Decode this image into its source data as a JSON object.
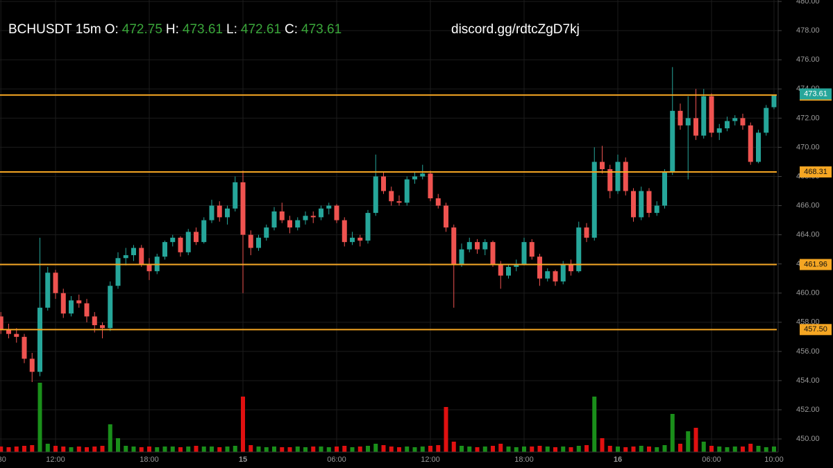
{
  "chart_data": {
    "type": "candlestick",
    "symbol": "BCHUSDT 15m",
    "readout_labels": [
      "O:",
      "H:",
      "L:",
      "C:"
    ],
    "annotation": "discord.gg/rdtcZgD7kj",
    "up_color": "#26a69a",
    "down_color": "#ef5350",
    "volume_up_color": "#1a8f1a",
    "volume_down_color": "#e01010",
    "level_color": "#f5a623",
    "grid": true,
    "ylim": [
      449.1,
      480.1
    ],
    "yticks": [
      {
        "value": 450,
        "label": "450.00"
      },
      {
        "value": 452,
        "label": "452.00"
      },
      {
        "value": 454,
        "label": "454.00"
      },
      {
        "value": 456,
        "label": "456.00"
      },
      {
        "value": 458,
        "label": "458.00"
      },
      {
        "value": 460,
        "label": "460.00"
      },
      {
        "value": 462,
        "label": "462.00"
      },
      {
        "value": 464,
        "label": "464.00"
      },
      {
        "value": 466,
        "label": "466.00"
      },
      {
        "value": 468,
        "label": "468.00"
      },
      {
        "value": 470,
        "label": "470.00"
      },
      {
        "value": 472,
        "label": "472.00"
      },
      {
        "value": 474,
        "label": "474.00"
      },
      {
        "value": 476,
        "label": "476.00"
      },
      {
        "value": 478,
        "label": "478.00"
      },
      {
        "value": 480,
        "label": "480.00"
      }
    ],
    "levels": [
      473.58,
      468.31,
      461.96,
      {
        "value": 457.5,
        "label": "457.50"
      }
    ],
    "categories": [
      ":30",
      null,
      null,
      null,
      null,
      null,
      null,
      "12:00",
      null,
      null,
      null,
      null,
      null,
      null,
      null,
      null,
      null,
      null,
      null,
      "18:00",
      null,
      null,
      null,
      null,
      null,
      null,
      null,
      null,
      null,
      null,
      null,
      "15",
      null,
      null,
      null,
      null,
      null,
      null,
      null,
      null,
      null,
      null,
      null,
      "06:00",
      null,
      null,
      null,
      null,
      null,
      null,
      null,
      null,
      null,
      null,
      null,
      "12:00",
      null,
      null,
      null,
      null,
      null,
      null,
      null,
      null,
      null,
      null,
      null,
      "18:00",
      null,
      null,
      null,
      null,
      null,
      null,
      null,
      null,
      null,
      null,
      null,
      "16",
      null,
      null,
      null,
      null,
      null,
      null,
      null,
      null,
      null,
      null,
      null,
      "06:00",
      null,
      null,
      null,
      null,
      null,
      null,
      null,
      "10:00"
    ],
    "candles": [
      [
        458.4,
        458.7,
        457.2,
        457.5
      ],
      [
        457.5,
        457.9,
        456.9,
        457.2
      ],
      [
        457.2,
        457.6,
        456.6,
        457.0
      ],
      [
        457.0,
        457.2,
        455.2,
        455.5
      ],
      [
        455.5,
        455.9,
        453.9,
        454.6
      ],
      [
        454.6,
        463.8,
        454.3,
        459.0
      ],
      [
        459.0,
        461.8,
        458.8,
        461.4
      ],
      [
        461.4,
        461.6,
        459.6,
        460.0
      ],
      [
        460.0,
        460.3,
        458.3,
        458.6
      ],
      [
        458.6,
        459.8,
        458.4,
        459.5
      ],
      [
        459.5,
        459.9,
        459.0,
        459.3
      ],
      [
        459.3,
        459.6,
        458.0,
        458.4
      ],
      [
        458.4,
        458.7,
        457.3,
        457.8
      ],
      [
        457.8,
        458.0,
        456.9,
        457.6
      ],
      [
        457.6,
        460.8,
        457.4,
        460.5
      ],
      [
        460.5,
        462.8,
        460.3,
        462.4
      ],
      [
        462.4,
        463.1,
        461.9,
        462.6
      ],
      [
        462.6,
        463.3,
        462.2,
        463.1
      ],
      [
        463.1,
        463.3,
        461.8,
        462.0
      ],
      [
        462.0,
        462.4,
        460.9,
        461.5
      ],
      [
        461.5,
        462.7,
        461.3,
        462.5
      ],
      [
        462.5,
        463.6,
        462.3,
        463.5
      ],
      [
        463.5,
        464.0,
        463.2,
        463.8
      ],
      [
        463.8,
        463.9,
        462.5,
        462.8
      ],
      [
        462.8,
        464.4,
        462.6,
        464.2
      ],
      [
        464.2,
        464.5,
        463.3,
        463.5
      ],
      [
        463.5,
        465.2,
        463.4,
        465.0
      ],
      [
        465.0,
        466.4,
        464.8,
        466.0
      ],
      [
        466.0,
        466.3,
        464.9,
        465.2
      ],
      [
        465.2,
        466.0,
        464.7,
        465.8
      ],
      [
        465.8,
        468.0,
        465.6,
        467.6
      ],
      [
        467.6,
        468.4,
        460.0,
        464.0
      ],
      [
        464.0,
        464.3,
        462.6,
        463.1
      ],
      [
        463.1,
        464.0,
        462.9,
        463.8
      ],
      [
        463.8,
        464.7,
        463.6,
        464.5
      ],
      [
        464.5,
        465.9,
        464.3,
        465.6
      ],
      [
        465.6,
        466.2,
        464.8,
        465.0
      ],
      [
        465.0,
        465.3,
        464.1,
        464.5
      ],
      [
        464.5,
        465.2,
        464.3,
        465.0
      ],
      [
        465.0,
        465.6,
        464.7,
        465.3
      ],
      [
        465.3,
        465.6,
        464.8,
        465.2
      ],
      [
        465.2,
        466.0,
        465.0,
        465.8
      ],
      [
        465.8,
        466.2,
        465.4,
        466.0
      ],
      [
        466.0,
        466.1,
        464.8,
        465.0
      ],
      [
        465.0,
        465.2,
        463.2,
        463.5
      ],
      [
        463.5,
        464.2,
        463.3,
        463.8
      ],
      [
        463.8,
        464.0,
        463.2,
        463.6
      ],
      [
        463.6,
        465.7,
        463.4,
        465.5
      ],
      [
        465.5,
        469.5,
        465.3,
        468.0
      ],
      [
        468.0,
        468.3,
        466.8,
        467.0
      ],
      [
        467.0,
        467.3,
        466.0,
        466.3
      ],
      [
        466.3,
        466.7,
        466.0,
        466.2
      ],
      [
        466.2,
        468.0,
        466.0,
        467.8
      ],
      [
        467.8,
        468.3,
        467.5,
        468.0
      ],
      [
        468.0,
        468.8,
        467.8,
        468.2
      ],
      [
        468.2,
        468.4,
        466.3,
        466.5
      ],
      [
        466.5,
        466.8,
        465.8,
        466.0
      ],
      [
        466.0,
        466.2,
        464.2,
        464.5
      ],
      [
        464.5,
        464.7,
        459.0,
        462.0
      ],
      [
        462.0,
        463.4,
        461.8,
        463.0
      ],
      [
        463.0,
        463.8,
        462.8,
        463.5
      ],
      [
        463.5,
        463.7,
        462.7,
        463.0
      ],
      [
        463.0,
        463.7,
        462.6,
        463.5
      ],
      [
        463.5,
        463.6,
        461.8,
        462.0
      ],
      [
        462.0,
        462.2,
        460.3,
        461.2
      ],
      [
        461.2,
        462.0,
        461.0,
        461.8
      ],
      [
        461.8,
        462.3,
        461.5,
        462.0
      ],
      [
        462.0,
        463.8,
        461.9,
        463.5
      ],
      [
        463.5,
        463.7,
        462.3,
        462.5
      ],
      [
        462.5,
        462.7,
        460.5,
        461.0
      ],
      [
        461.0,
        461.7,
        460.8,
        461.5
      ],
      [
        461.5,
        461.6,
        460.5,
        460.8
      ],
      [
        460.8,
        462.2,
        460.6,
        462.0
      ],
      [
        462.0,
        462.3,
        461.2,
        461.5
      ],
      [
        461.5,
        464.9,
        461.4,
        464.5
      ],
      [
        464.5,
        464.8,
        463.5,
        463.8
      ],
      [
        463.8,
        470.0,
        463.6,
        469.0
      ],
      [
        469.0,
        470.1,
        468.2,
        468.5
      ],
      [
        468.5,
        468.8,
        466.5,
        467.0
      ],
      [
        467.0,
        469.5,
        466.8,
        469.0
      ],
      [
        469.0,
        469.3,
        466.7,
        467.0
      ],
      [
        467.0,
        467.2,
        464.9,
        465.2
      ],
      [
        465.2,
        467.3,
        465.0,
        467.0
      ],
      [
        467.0,
        467.2,
        465.2,
        465.5
      ],
      [
        465.5,
        466.3,
        465.3,
        466.0
      ],
      [
        466.0,
        468.5,
        465.8,
        468.3
      ],
      [
        468.3,
        475.5,
        468.1,
        472.5
      ],
      [
        472.5,
        473.0,
        471.2,
        471.5
      ],
      [
        471.5,
        473.5,
        467.8,
        472.0
      ],
      [
        472.0,
        474.0,
        470.5,
        470.8
      ],
      [
        470.8,
        474.0,
        470.6,
        473.5
      ],
      [
        473.5,
        473.7,
        470.7,
        471.0
      ],
      [
        471.0,
        471.6,
        470.5,
        471.3
      ],
      [
        471.3,
        472.1,
        471.1,
        471.8
      ],
      [
        471.8,
        472.2,
        471.5,
        472.0
      ],
      [
        472.0,
        472.3,
        471.2,
        471.5
      ],
      [
        471.5,
        471.7,
        468.8,
        469.0
      ],
      [
        469.0,
        471.2,
        468.9,
        471.0
      ],
      [
        471.0,
        472.9,
        470.8,
        472.7
      ],
      [
        472.75,
        473.61,
        472.61,
        473.61
      ]
    ],
    "volume": [
      8,
      7,
      8,
      9,
      10,
      100,
      12,
      9,
      8,
      7,
      8,
      7,
      8,
      9,
      40,
      20,
      9,
      8,
      7,
      8,
      7,
      8,
      8,
      7,
      8,
      9,
      8,
      8,
      7,
      8,
      9,
      80,
      10,
      8,
      7,
      8,
      7,
      7,
      8,
      7,
      8,
      8,
      7,
      8,
      9,
      7,
      8,
      9,
      12,
      10,
      8,
      7,
      8,
      7,
      8,
      9,
      10,
      65,
      15,
      9,
      8,
      7,
      8,
      9,
      12,
      8,
      7,
      8,
      8,
      9,
      8,
      7,
      8,
      7,
      9,
      10,
      80,
      20,
      9,
      8,
      7,
      8,
      9,
      8,
      7,
      10,
      55,
      12,
      30,
      35,
      15,
      9,
      8,
      7,
      8,
      8,
      12,
      9,
      7,
      8
    ]
  }
}
